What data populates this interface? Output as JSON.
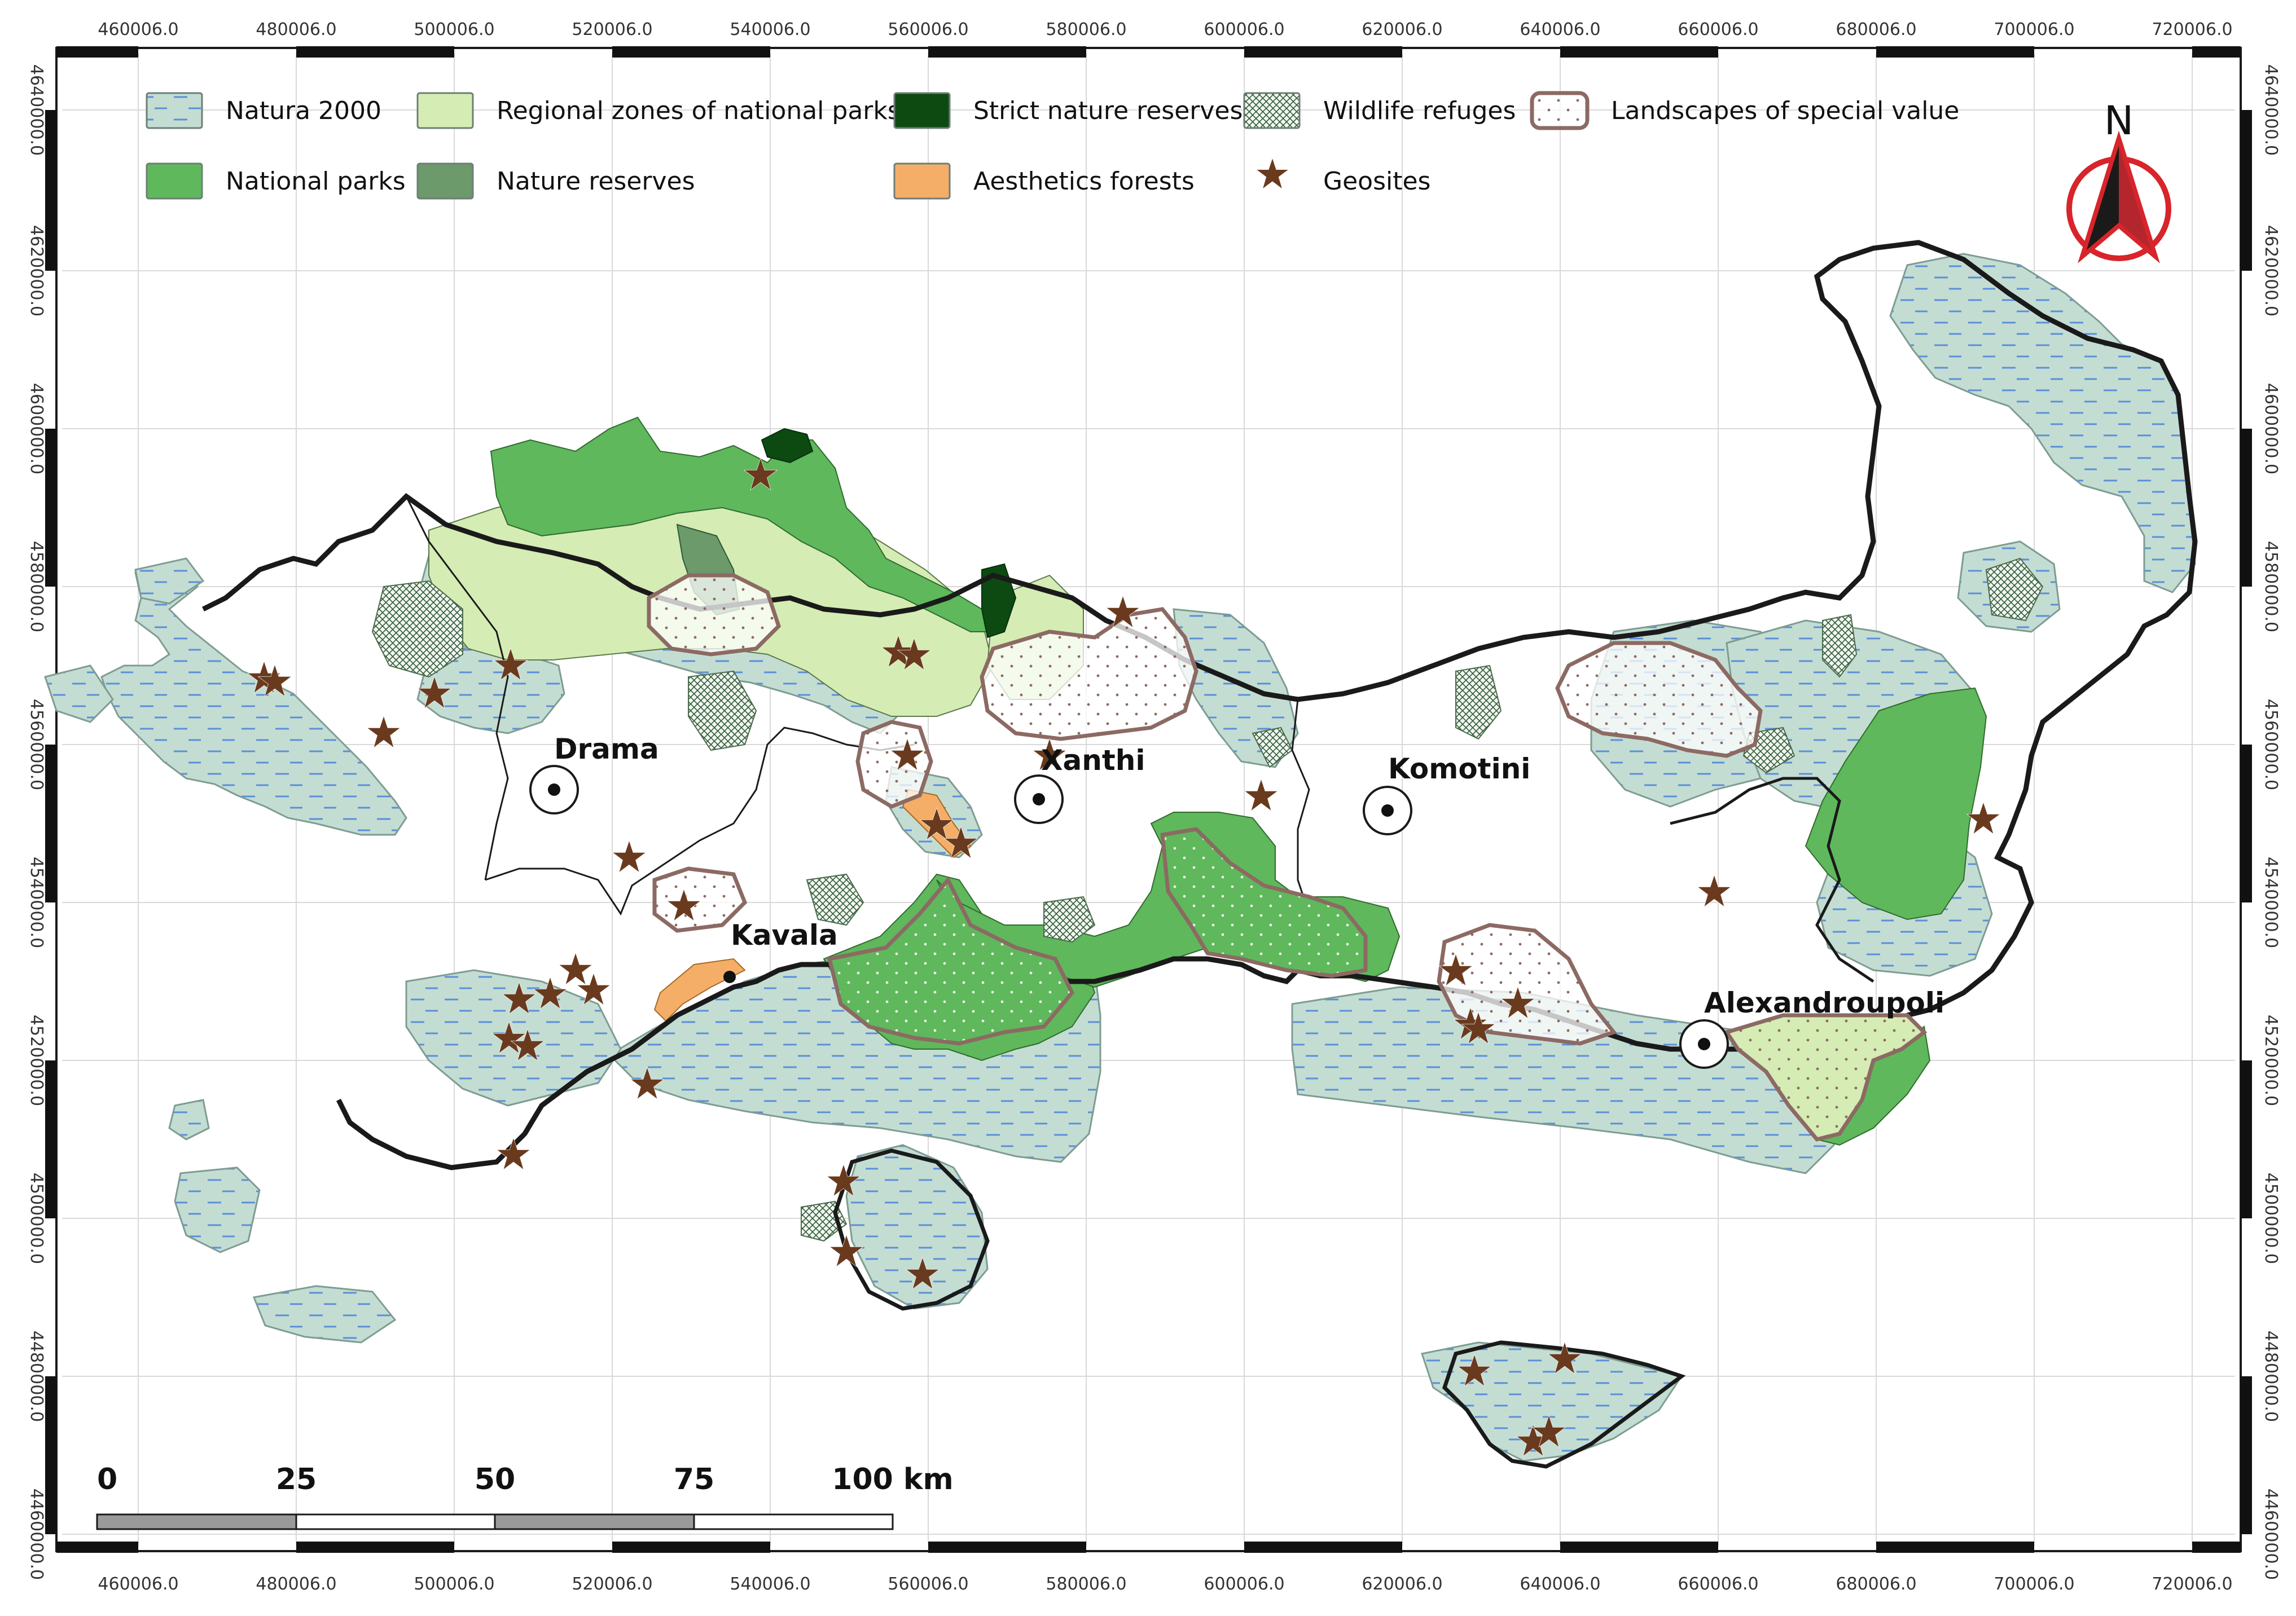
{
  "map": {
    "x_ticks": [
      "460006.0",
      "480006.0",
      "500006.0",
      "520006.0",
      "540006.0",
      "560006.0",
      "580006.0",
      "600006.0",
      "620006.0",
      "640006.0",
      "660006.0",
      "680006.0",
      "700006.0",
      "720006.0"
    ],
    "y_ticks": [
      "4640000.0",
      "4620000.0",
      "4600000.0",
      "4580000.0",
      "4560000.0",
      "4540000.0",
      "4520000.0",
      "4500000.0",
      "4480000.0",
      "4460000.0"
    ],
    "north_label": "N",
    "legend": [
      {
        "key": "natura2000",
        "label": "Natura 2000",
        "color": "#c4ddd3",
        "pattern": "dash"
      },
      {
        "key": "regional",
        "label": "Regional zones of national parks",
        "color": "#d5ecb4",
        "pattern": "solid"
      },
      {
        "key": "strict",
        "label": "Strict nature reserves",
        "color": "#0c4a12",
        "pattern": "solid"
      },
      {
        "key": "wildlife",
        "label": "Wildlife refuges",
        "color": "#eef3ec",
        "pattern": "hatch"
      },
      {
        "key": "landscapes",
        "label": "Landscapes of special value",
        "color": "#ffffff",
        "pattern": "dots"
      },
      {
        "key": "national",
        "label": "National parks",
        "color": "#5fb85c",
        "pattern": "solid"
      },
      {
        "key": "reserves",
        "label": "Nature reserves",
        "color": "#6c9a6a",
        "pattern": "solid"
      },
      {
        "key": "aesthetic",
        "label": "Aesthetics forests",
        "color": "#f4ae68",
        "pattern": "solid"
      },
      {
        "key": "geosites",
        "label": "Geosites",
        "color": "#6a3a1e",
        "pattern": "star"
      }
    ],
    "cities": [
      {
        "name": "Drama"
      },
      {
        "name": "Xanthi"
      },
      {
        "name": "Komotini"
      },
      {
        "name": "Kavala"
      },
      {
        "name": "Alexandroupoli"
      }
    ],
    "scale_bar": {
      "labels": [
        "0",
        "25",
        "50",
        "75",
        "100 km"
      ]
    },
    "colors": {
      "border": "#1a1a1a",
      "natura": "#c4ddd3",
      "natura_stroke": "#7e9c92",
      "water_dash": "#5b8fd8",
      "national": "#5fb85c",
      "national_dark": "#4e9e4b",
      "regional": "#d5ecb4",
      "strict": "#0c4a12",
      "reserves": "#6c9a6a",
      "aesthetic": "#f4ae68",
      "landscape_stroke": "#8c6a63",
      "star": "#6a3a1e",
      "grid": "#d9d9d9",
      "north_red": "#d8242b"
    }
  }
}
